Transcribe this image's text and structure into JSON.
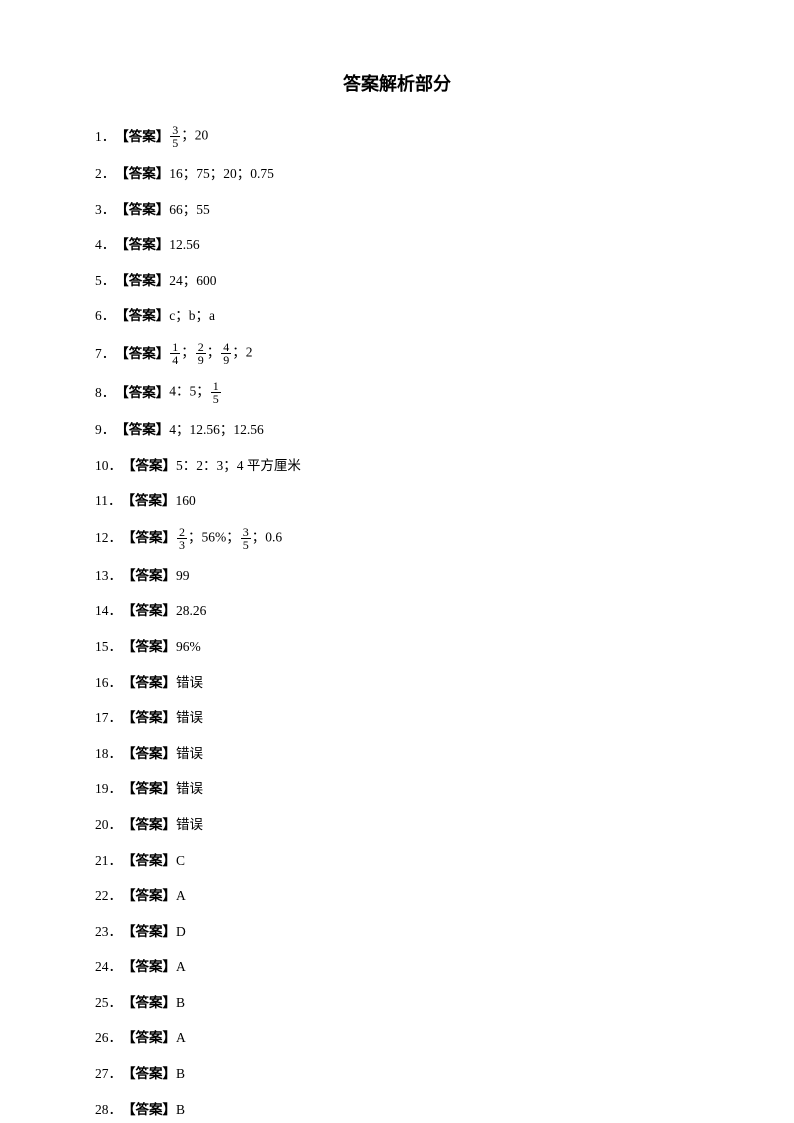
{
  "title": "答案解析部分",
  "label": "【答案】",
  "colors": {
    "text": "#000000",
    "background": "#ffffff"
  },
  "typography": {
    "title_fontsize": 18,
    "body_fontsize": 13.5,
    "title_font": "SimHei",
    "body_font": "SimSun"
  },
  "items": [
    {
      "num": "1．",
      "type": "fraction_start",
      "frac": {
        "n": "3",
        "d": "5"
      },
      "rest": "；20"
    },
    {
      "num": "2．",
      "type": "plain",
      "content": "16；75；20；0.75"
    },
    {
      "num": "3．",
      "type": "plain",
      "content": "66；55"
    },
    {
      "num": "4．",
      "type": "plain",
      "content": "12.56"
    },
    {
      "num": "5．",
      "type": "plain",
      "content": "24；600"
    },
    {
      "num": "6．",
      "type": "plain",
      "content": "c；b；a"
    },
    {
      "num": "7．",
      "type": "multifrac",
      "parts": [
        {
          "type": "frac",
          "n": "1",
          "d": "4"
        },
        {
          "type": "text",
          "v": "；"
        },
        {
          "type": "frac",
          "n": "2",
          "d": "9"
        },
        {
          "type": "text",
          "v": "；"
        },
        {
          "type": "frac",
          "n": "4",
          "d": "9"
        },
        {
          "type": "text",
          "v": "；2"
        }
      ]
    },
    {
      "num": "8．",
      "type": "multifrac",
      "parts": [
        {
          "type": "text",
          "v": "4：5；"
        },
        {
          "type": "frac",
          "n": "1",
          "d": "5"
        }
      ]
    },
    {
      "num": "9．",
      "type": "plain",
      "content": "4；12.56；12.56"
    },
    {
      "num": "10．",
      "type": "plain",
      "content": "5：2：3；4 平方厘米"
    },
    {
      "num": "11．",
      "type": "plain",
      "content": "160"
    },
    {
      "num": "12．",
      "type": "multifrac",
      "parts": [
        {
          "type": "frac",
          "n": "2",
          "d": "3"
        },
        {
          "type": "text",
          "v": "；56%；"
        },
        {
          "type": "frac",
          "n": "3",
          "d": "5"
        },
        {
          "type": "text",
          "v": "；0.6"
        }
      ]
    },
    {
      "num": "13．",
      "type": "plain",
      "content": "99"
    },
    {
      "num": "14．",
      "type": "plain",
      "content": "28.26"
    },
    {
      "num": "15．",
      "type": "plain",
      "content": "96%"
    },
    {
      "num": "16．",
      "type": "plain",
      "content": "错误"
    },
    {
      "num": "17．",
      "type": "plain",
      "content": "错误"
    },
    {
      "num": "18．",
      "type": "plain",
      "content": "错误"
    },
    {
      "num": "19．",
      "type": "plain",
      "content": "错误"
    },
    {
      "num": "20．",
      "type": "plain",
      "content": "错误"
    },
    {
      "num": "21．",
      "type": "plain",
      "content": "C"
    },
    {
      "num": "22．",
      "type": "plain",
      "content": "A"
    },
    {
      "num": "23．",
      "type": "plain",
      "content": "D"
    },
    {
      "num": "24．",
      "type": "plain",
      "content": "A"
    },
    {
      "num": "25．",
      "type": "plain",
      "content": "B"
    },
    {
      "num": "26．",
      "type": "plain",
      "content": "A"
    },
    {
      "num": "27．",
      "type": "plain",
      "content": "B"
    },
    {
      "num": "28．",
      "type": "plain",
      "content": "B"
    }
  ]
}
